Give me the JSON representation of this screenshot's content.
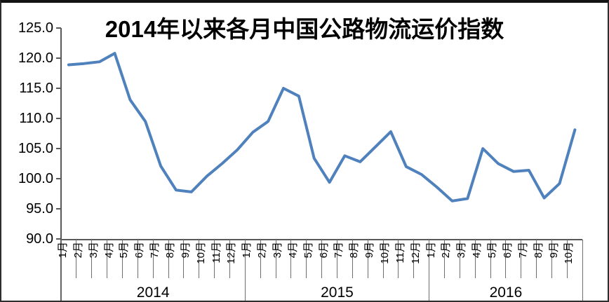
{
  "chart_data": {
    "type": "line",
    "title": "2014年以来各月中国公路物流运价指数",
    "grid": false,
    "legend": "none",
    "y_axis": {
      "min": 90,
      "max": 125,
      "step": 5,
      "decimals": 1
    },
    "x_axis": {
      "years": [
        {
          "label": "2014",
          "months": [
            "1月",
            "2月",
            "3月",
            "4月",
            "5月",
            "6月",
            "7月",
            "8月",
            "9月",
            "10月",
            "11月",
            "12月"
          ]
        },
        {
          "label": "2015",
          "months": [
            "1月",
            "2月",
            "3月",
            "4月",
            "5月",
            "6月",
            "7月",
            "8月",
            "9月",
            "10月",
            "11月",
            "12月"
          ]
        },
        {
          "label": "2016",
          "months": [
            "1月",
            "2月",
            "3月",
            "4月",
            "5月",
            "6月",
            "7月",
            "8月",
            "9月",
            "10月"
          ]
        }
      ]
    },
    "series": [
      {
        "color": "#4F81BD",
        "values": [
          118.9,
          119.1,
          119.4,
          120.8,
          113.1,
          109.5,
          102.1,
          98.1,
          97.8,
          100.4,
          102.5,
          104.8,
          107.7,
          109.5,
          115.0,
          113.7,
          103.4,
          99.4,
          103.8,
          102.8,
          105.3,
          107.8,
          102.0,
          100.7,
          98.6,
          96.3,
          96.7,
          105.0,
          102.5,
          101.2,
          101.4,
          96.8,
          99.2,
          108.1
        ]
      }
    ]
  },
  "style": {
    "line_color": "#4F81BD",
    "axis_color": "#595959",
    "text_color": "#000000",
    "background": "#FFFFFF"
  }
}
